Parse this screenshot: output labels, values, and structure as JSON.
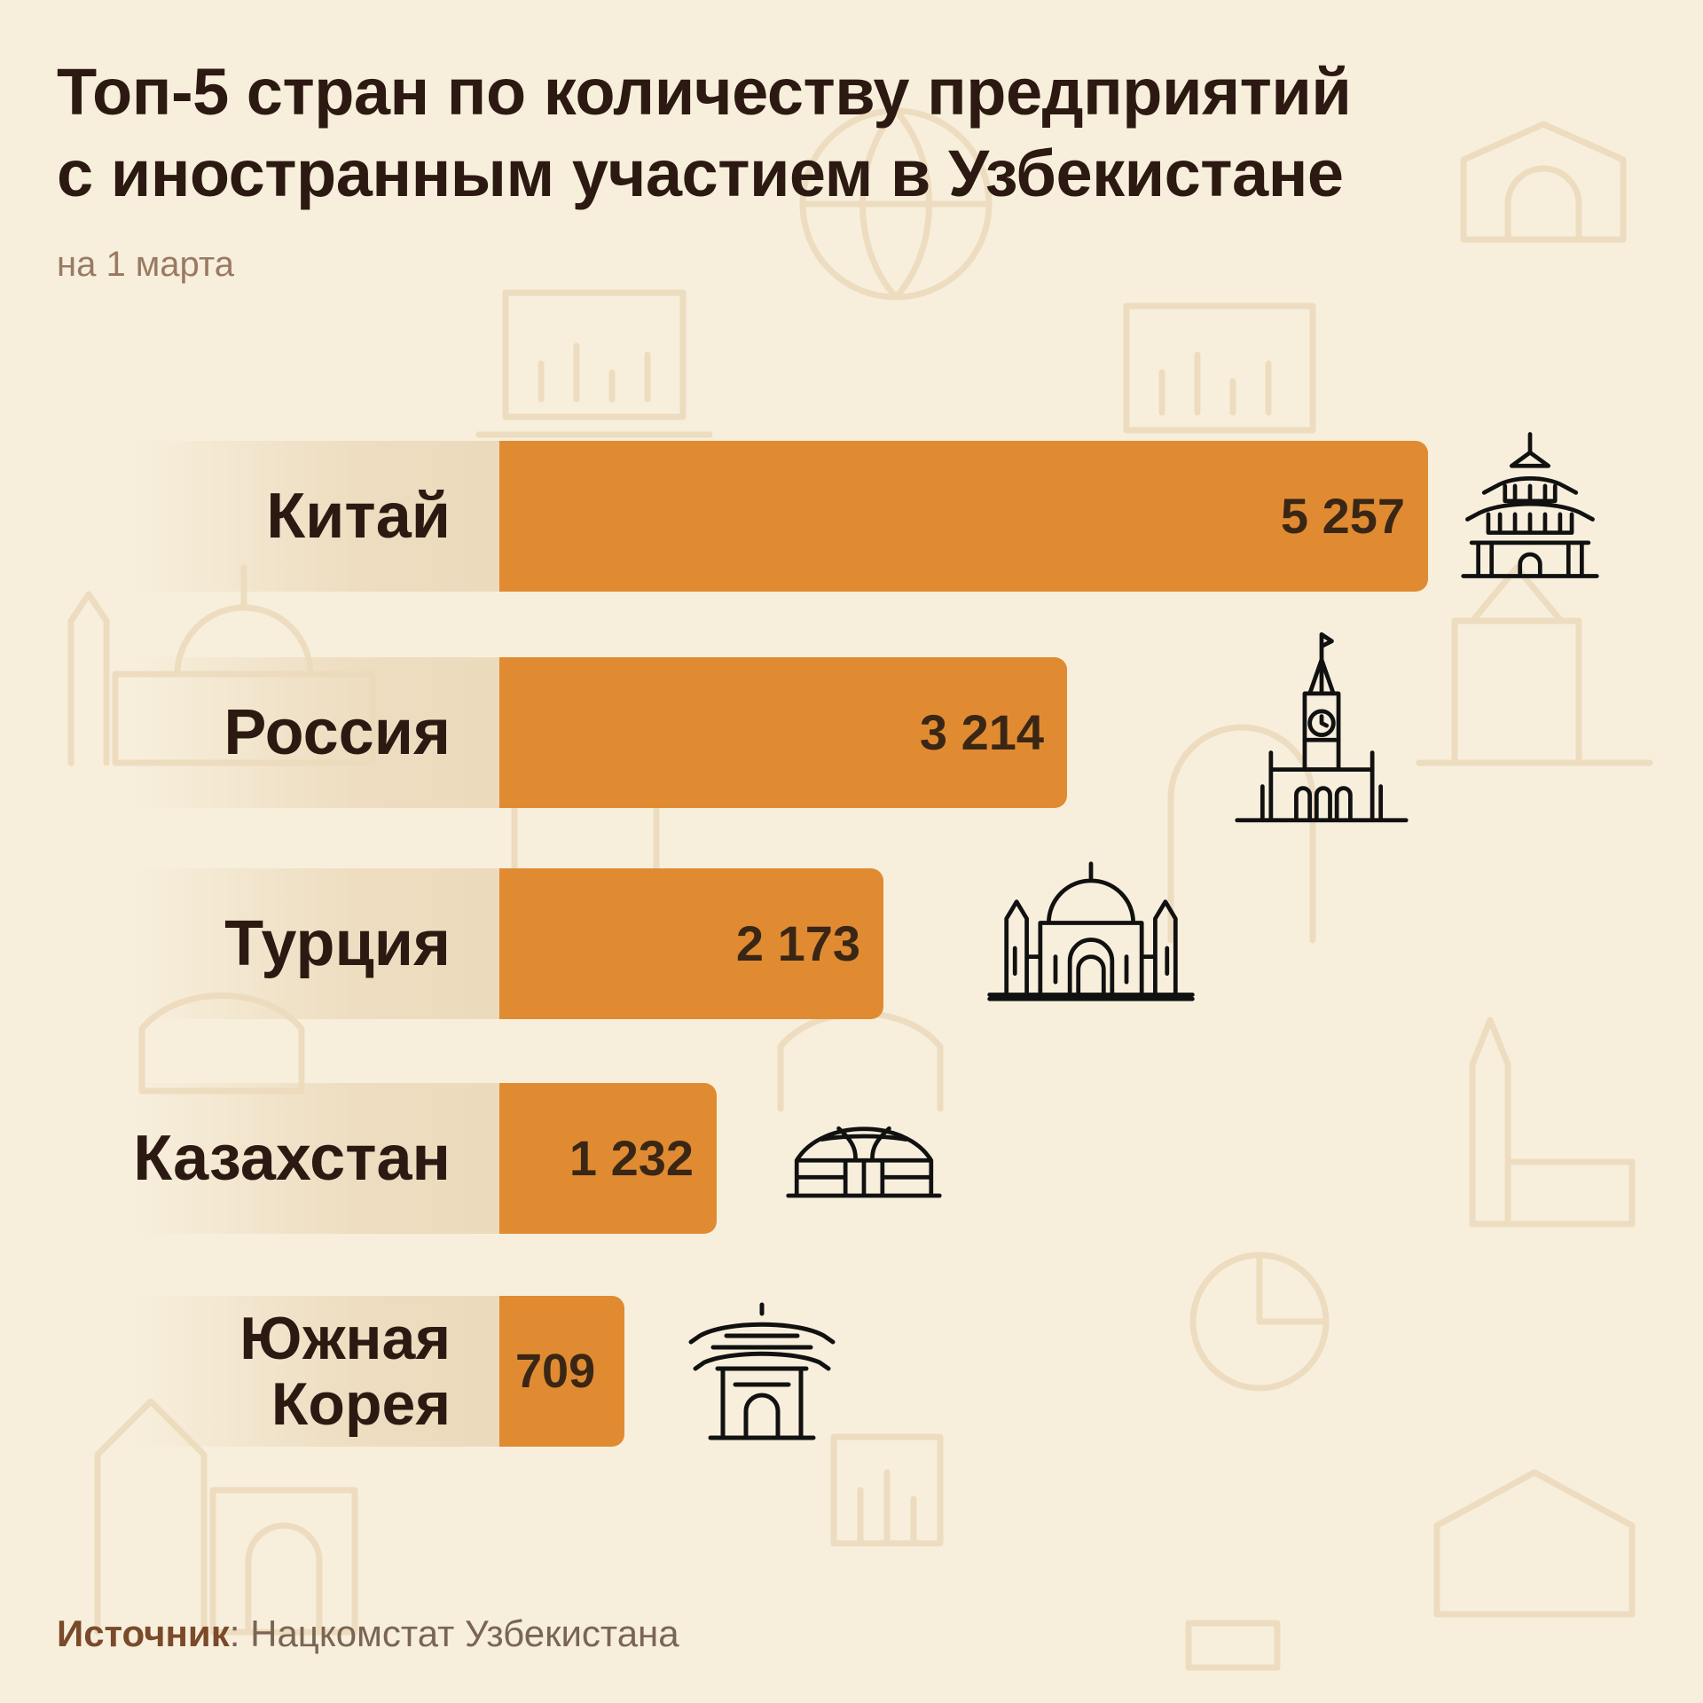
{
  "title_line1": "Топ-5 стран по количеству предприятий",
  "title_line2": "с иностранным участием в Узбекистане",
  "subtitle": "на 1 марта",
  "source": {
    "label": "Источник",
    "separator": ":",
    "text": " Нацкомстат Узбекистана"
  },
  "colors": {
    "background": "#f7efdc",
    "bar": "#e08b32",
    "label_shade": "#ecdabc",
    "text": "#2c1a12"
  },
  "chart_data": {
    "type": "bar",
    "orientation": "horizontal",
    "title": "Топ-5 стран по количеству предприятий с иностранным участием в Узбекистане",
    "subtitle": "на 1 марта",
    "categories": [
      "Китай",
      "Россия",
      "Турция",
      "Казахстан",
      "Южная Корея"
    ],
    "category_lines": [
      [
        "Китай"
      ],
      [
        "Россия"
      ],
      [
        "Турция"
      ],
      [
        "Казахстан"
      ],
      [
        "Южная",
        "Корея"
      ]
    ],
    "values": [
      5257,
      3214,
      2173,
      1232,
      709
    ],
    "value_labels": [
      "5 257",
      "3 214",
      "2 173",
      "1 232",
      "709"
    ],
    "icons": [
      "chinese-pagoda-icon",
      "kremlin-tower-icon",
      "mosque-icon",
      "yurt-icon",
      "korean-gate-icon"
    ],
    "xlim": [
      0,
      5257
    ],
    "xlabel": "",
    "ylabel": "",
    "grid": false,
    "legend": "none"
  }
}
